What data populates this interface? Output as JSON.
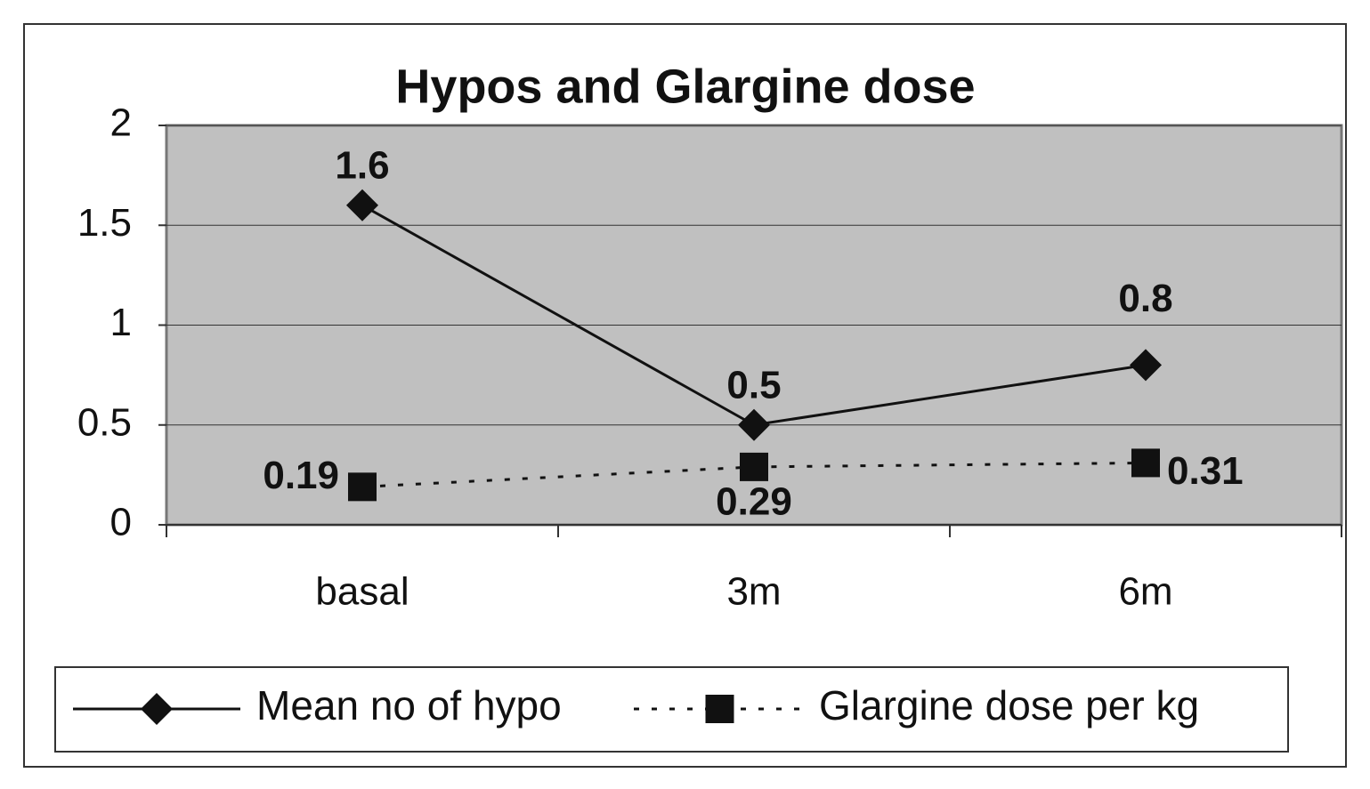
{
  "chart_data": {
    "type": "line",
    "title": "Hypos and Glargine dose",
    "categories": [
      "basal",
      "3m",
      "6m"
    ],
    "series": [
      {
        "name": "Mean no of hypo",
        "color": "#111111",
        "values": [
          1.6,
          0.5,
          0.8
        ]
      },
      {
        "name": "Glargine dose per kg",
        "color": "#111111",
        "values": [
          0.19,
          0.29,
          0.31
        ]
      }
    ],
    "ylim": [
      0,
      2
    ],
    "yticks": [
      0,
      0.5,
      1,
      1.5,
      2
    ],
    "grid": true,
    "legend": "bottom"
  }
}
